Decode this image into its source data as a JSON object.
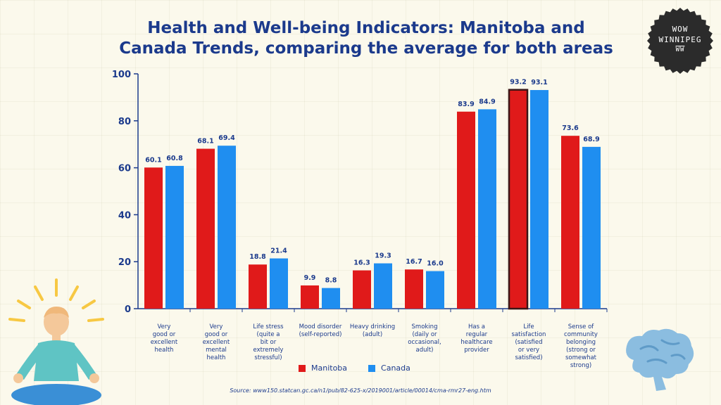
{
  "header": {
    "title_line1": "Health and Well-being Indicators: Manitoba and",
    "title_line2": "Canada Trends, comparing the average for both areas"
  },
  "badge": {
    "line1": "WOW",
    "line2": "WINNIPEG",
    "line3": "WW"
  },
  "colors": {
    "manitoba": "#e01a1a",
    "canada": "#1f8ef0",
    "text": "#1b3a8c",
    "highlight_border": "#3a1616"
  },
  "icons": {
    "person": "meditating-person-icon",
    "brain": "brain-icon"
  },
  "chart_data": {
    "type": "bar",
    "title": "Health and Well-being Indicators: Manitoba and Canada Trends, comparing the average for both areas",
    "xlabel": "",
    "ylabel": "",
    "ylim": [
      0,
      100
    ],
    "yticks": [
      0,
      20,
      40,
      60,
      80,
      100
    ],
    "legend_position": "bottom",
    "categories": [
      [
        "Very",
        "good or",
        "excellent",
        "health"
      ],
      [
        "Very",
        "good or",
        "excellent",
        "mental",
        "health"
      ],
      [
        "Life stress",
        "(quite a",
        "bit or",
        "extremely",
        "stressful)"
      ],
      [
        "Mood disorder",
        "(self-reported)"
      ],
      [
        "Heavy drinking",
        "(adult)"
      ],
      [
        "Smoking",
        "(daily or",
        "occasional,",
        "adult)"
      ],
      [
        "Has a",
        "regular",
        "healthcare",
        "provider"
      ],
      [
        "Life",
        "satisfaction",
        "(satisfied",
        "or very",
        "satisfied)"
      ],
      [
        "Sense of",
        "community",
        "belonging",
        "(strong or",
        "somewhat",
        "strong)"
      ]
    ],
    "series": [
      {
        "name": "Manitoba",
        "values": [
          60.1,
          68.1,
          18.8,
          9.9,
          16.3,
          16.7,
          83.9,
          93.2,
          73.6
        ]
      },
      {
        "name": "Canada",
        "values": [
          60.8,
          69.4,
          21.4,
          8.8,
          19.3,
          16.0,
          84.9,
          93.1,
          68.9
        ]
      }
    ],
    "value_labels": [
      [
        "60.1",
        "68.1",
        "18.8",
        "9.9",
        "16.3",
        "16.7",
        "83.9",
        "93.2",
        "73.6"
      ],
      [
        "60.8",
        "69.4",
        "21.4",
        "8.8",
        "19.3",
        "16.0",
        "84.9",
        "93.1",
        "68.9"
      ]
    ],
    "highlighted_bar": {
      "series": "Manitoba",
      "category_index": 7
    }
  },
  "legend": {
    "manitoba": "Manitoba",
    "canada": "Canada"
  },
  "source": "Source: www150.statcan.gc.ca/n1/pub/82-625-x/2019001/article/00014/cma-rmr27-eng.htm"
}
